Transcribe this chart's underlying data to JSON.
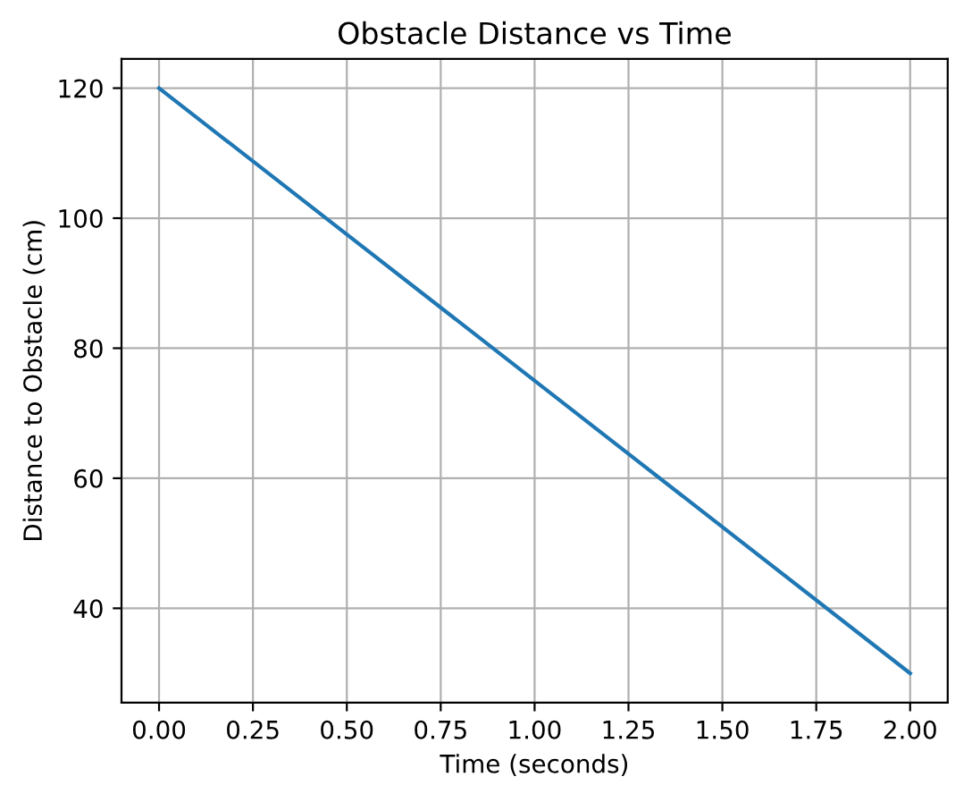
{
  "chart_data": {
    "type": "line",
    "title": "Obstacle Distance vs Time",
    "xlabel": "Time (seconds)",
    "ylabel": "Distance to Obstacle (cm)",
    "x": [
      0,
      2
    ],
    "series": [
      {
        "color": "#1f77b4",
        "values": [
          120,
          30
        ]
      }
    ],
    "xlim": [
      -0.1,
      2.1
    ],
    "ylim": [
      25.5,
      124.5
    ],
    "xticks": [
      {
        "value": 0,
        "label": "0.00"
      },
      {
        "value": 0.25,
        "label": "0.25"
      },
      {
        "value": 0.5,
        "label": "0.50"
      },
      {
        "value": 0.75,
        "label": "0.75"
      },
      {
        "value": 1,
        "label": "1.00"
      },
      {
        "value": 1.25,
        "label": "1.25"
      },
      {
        "value": 1.5,
        "label": "1.50"
      },
      {
        "value": 1.75,
        "label": "1.75"
      },
      {
        "value": 2,
        "label": "2.00"
      }
    ],
    "yticks": [
      40,
      60,
      80,
      100,
      120
    ],
    "grid": true
  }
}
